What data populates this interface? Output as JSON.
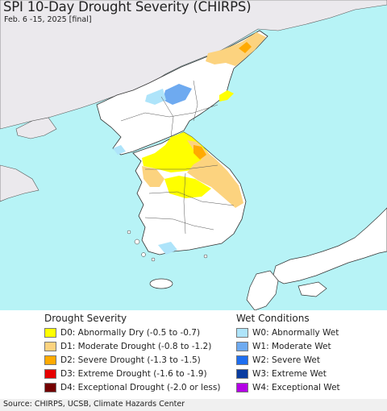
{
  "map": {
    "title": "SPI 10-Day Drought Severity (CHIRPS)",
    "subtitle": "Feb. 6 -15, 2025 [final]",
    "colors": {
      "water": "#b7f3f6",
      "land_outside": "#ebe9ed",
      "land_region": "#ffffff",
      "border": "#333333"
    }
  },
  "legend": {
    "drought": {
      "title": "Drought Severity",
      "items": [
        {
          "label": "D0: Abnormally Dry (-0.5 to -0.7)",
          "color": "#ffff00"
        },
        {
          "label": "D1: Moderate Drought (-0.8 to -1.2)",
          "color": "#fcd37f"
        },
        {
          "label": "D2: Severe Drought (-1.3 to -1.5)",
          "color": "#ffaa00"
        },
        {
          "label": "D3: Extreme Drought (-1.6 to -1.9)",
          "color": "#e60000"
        },
        {
          "label": "D4: Exceptional Drought (-2.0 or less)",
          "color": "#730000"
        }
      ]
    },
    "wet": {
      "title": "Wet Conditions",
      "items": [
        {
          "label": "W0: Abnormally Wet",
          "color": "#aee4fa"
        },
        {
          "label": "W1: Moderate Wet",
          "color": "#6eaaf0"
        },
        {
          "label": "W2: Severe Wet",
          "color": "#1e6ef0"
        },
        {
          "label": "W3: Extreme Wet",
          "color": "#0a3ca0"
        },
        {
          "label": "W4: Exceptional Wet",
          "color": "#b400e6"
        }
      ]
    }
  },
  "footer": {
    "source": "Source: CHIRPS, UCSB, Climate Hazards Center"
  }
}
